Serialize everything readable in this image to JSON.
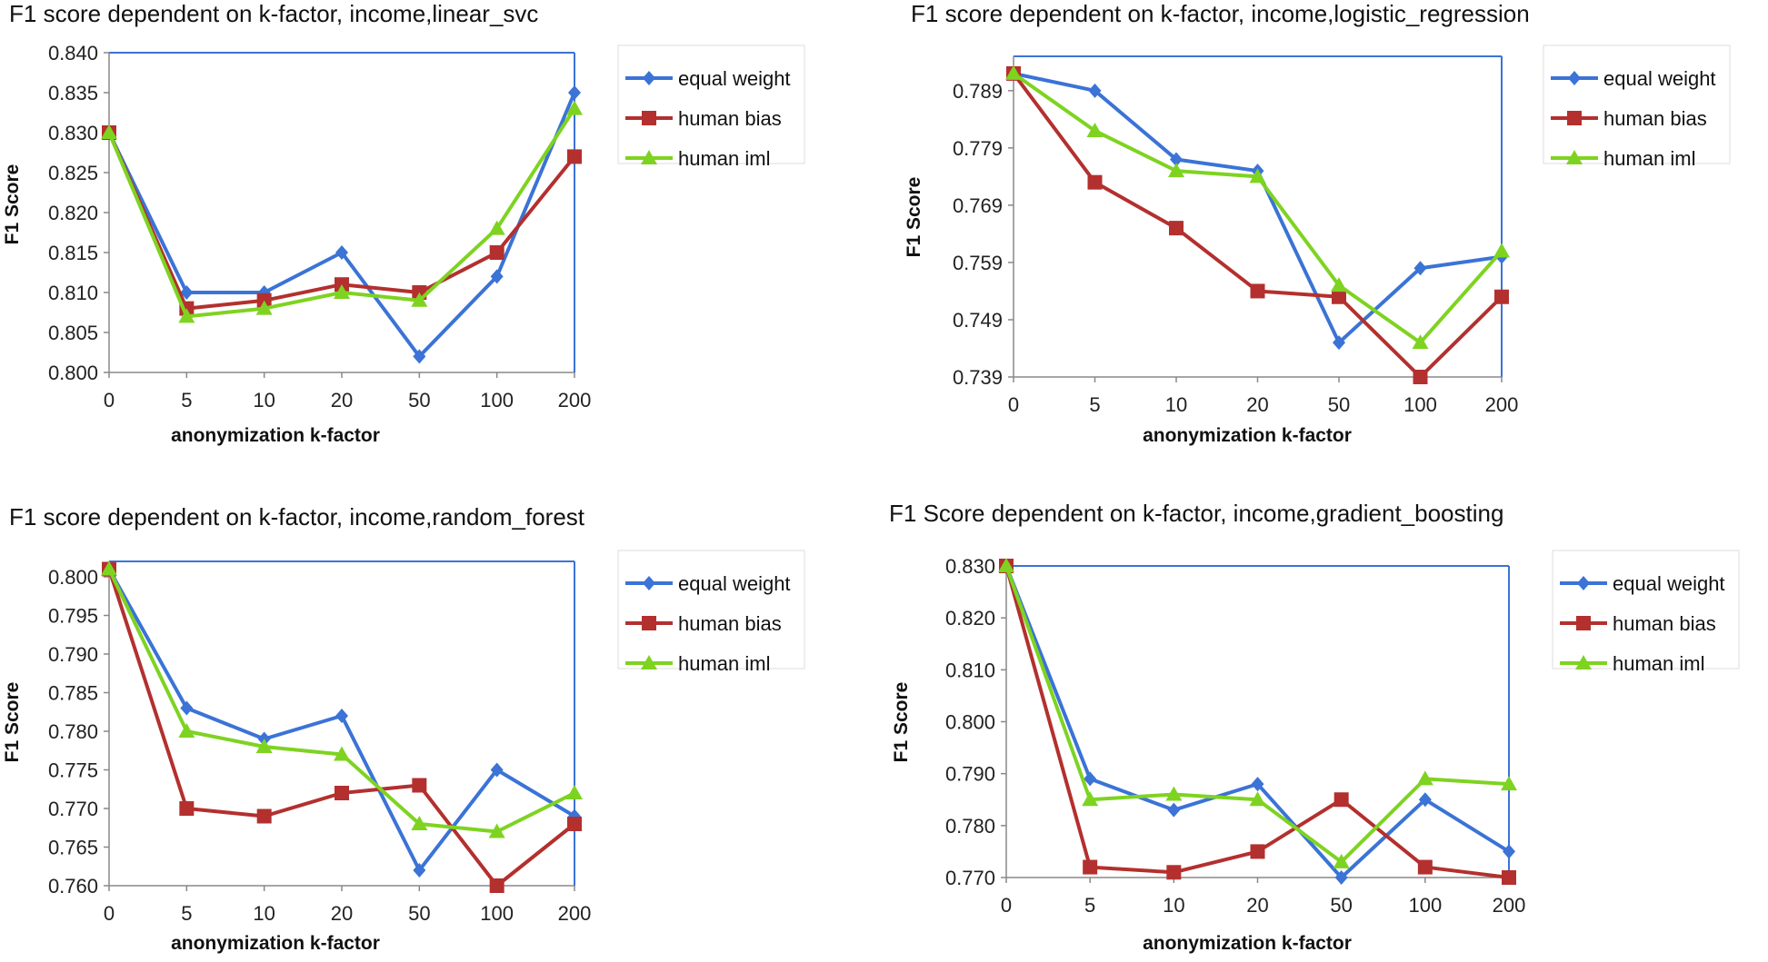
{
  "series_colors": {
    "equal weight": "#3b73d6",
    "human bias": "#b3302e",
    "human iml": "#7ed321"
  },
  "chart_data": [
    {
      "type": "line",
      "title": "F1 score dependent on k-factor, income,linear_svc",
      "xlabel": "anonymization  k-factor",
      "ylabel": "F1 Score",
      "categories": [
        "0",
        "5",
        "10",
        "20",
        "50",
        "100",
        "200"
      ],
      "ylim": [
        0.8,
        0.84
      ],
      "yticks": [
        "0.800",
        "0.805",
        "0.810",
        "0.815",
        "0.820",
        "0.825",
        "0.830",
        "0.835",
        "0.840"
      ],
      "series": [
        {
          "name": "equal weight",
          "values": [
            0.83,
            0.81,
            0.81,
            0.815,
            0.802,
            0.812,
            0.835
          ]
        },
        {
          "name": "human bias",
          "values": [
            0.83,
            0.808,
            0.809,
            0.811,
            0.81,
            0.815,
            0.827
          ]
        },
        {
          "name": "human iml",
          "values": [
            0.83,
            0.807,
            0.808,
            0.81,
            0.809,
            0.818,
            0.833
          ]
        }
      ]
    },
    {
      "type": "line",
      "title": "F1 score dependent on k-factor, income,logistic_regression",
      "xlabel": "anonymization  k-factor",
      "ylabel": "F1 Score",
      "categories": [
        "0",
        "5",
        "10",
        "20",
        "50",
        "100",
        "200"
      ],
      "ylim": [
        0.739,
        0.795
      ],
      "yticks": [
        "0.739",
        "0.749",
        "0.759",
        "0.769",
        "0.779",
        "0.789"
      ],
      "series": [
        {
          "name": "equal weight",
          "values": [
            0.792,
            0.789,
            0.777,
            0.775,
            0.745,
            0.758,
            0.76
          ]
        },
        {
          "name": "human bias",
          "values": [
            0.792,
            0.773,
            0.765,
            0.754,
            0.753,
            0.739,
            0.753
          ]
        },
        {
          "name": "human iml",
          "values": [
            0.792,
            0.782,
            0.775,
            0.774,
            0.755,
            0.745,
            0.761
          ]
        }
      ]
    },
    {
      "type": "line",
      "title": "F1 score dependent on k-factor, income,random_forest",
      "xlabel": "anonymization  k-factor",
      "ylabel": "F1 Score",
      "categories": [
        "0",
        "5",
        "10",
        "20",
        "50",
        "100",
        "200"
      ],
      "ylim": [
        0.76,
        0.802
      ],
      "yticks": [
        "0.760",
        "0.765",
        "0.770",
        "0.775",
        "0.780",
        "0.785",
        "0.790",
        "0.795",
        "0.800"
      ],
      "series": [
        {
          "name": "equal weight",
          "values": [
            0.801,
            0.783,
            0.779,
            0.782,
            0.762,
            0.775,
            0.769
          ]
        },
        {
          "name": "human bias",
          "values": [
            0.801,
            0.77,
            0.769,
            0.772,
            0.773,
            0.76,
            0.768
          ]
        },
        {
          "name": "human iml",
          "values": [
            0.801,
            0.78,
            0.778,
            0.777,
            0.768,
            0.767,
            0.772
          ]
        }
      ]
    },
    {
      "type": "line",
      "title": "F1 Score dependent on k-factor, income,gradient_boosting",
      "xlabel": "anonymization  k-factor",
      "ylabel": "F1 Score",
      "categories": [
        "0",
        "5",
        "10",
        "20",
        "50",
        "100",
        "200"
      ],
      "ylim": [
        0.77,
        0.83
      ],
      "yticks": [
        "0.770",
        "0.780",
        "0.790",
        "0.800",
        "0.810",
        "0.820",
        "0.830"
      ],
      "series": [
        {
          "name": "equal weight",
          "values": [
            0.83,
            0.789,
            0.783,
            0.788,
            0.77,
            0.785,
            0.775
          ]
        },
        {
          "name": "human bias",
          "values": [
            0.83,
            0.772,
            0.771,
            0.775,
            0.785,
            0.772,
            0.77
          ]
        },
        {
          "name": "human iml",
          "values": [
            0.83,
            0.785,
            0.786,
            0.785,
            0.773,
            0.789,
            0.788
          ]
        }
      ]
    }
  ]
}
